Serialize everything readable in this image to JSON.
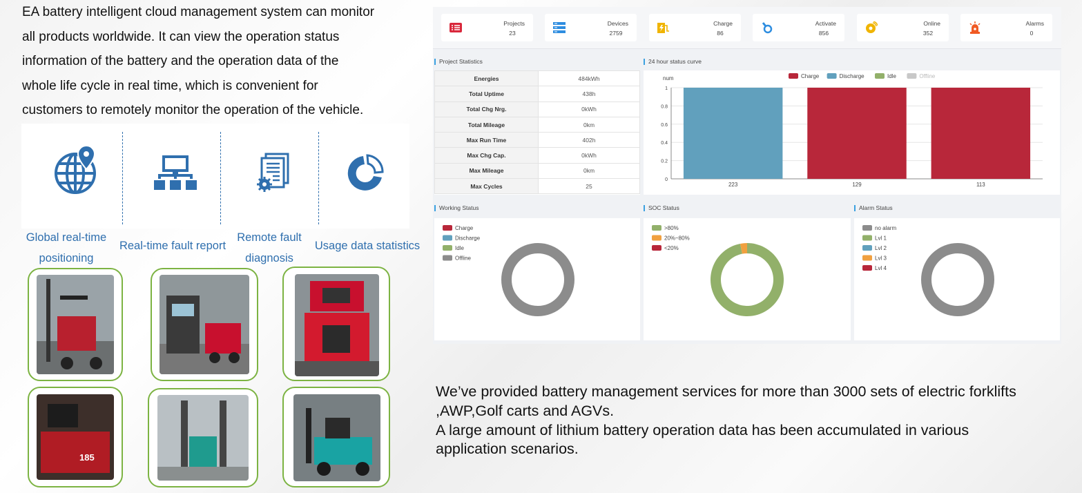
{
  "intro": {
    "lines": [
      "EA battery intelligent cloud management system can monitor",
      "all products worldwide. It can view the operation status",
      "information of the battery and the operation data of the",
      "whole life cycle in real time, which is convenient for",
      "customers to remotely monitor the operation of the vehicle."
    ]
  },
  "features": [
    {
      "line1": "Global real-time",
      "line2": "positioning",
      "icon": "globe-pin-icon"
    },
    {
      "line1": "Real-time fault report",
      "line2": "",
      "icon": "network-icon"
    },
    {
      "line1": "Remote fault",
      "line2": "diagnosis",
      "icon": "document-gear-icon"
    },
    {
      "line1": "Usage data statistics",
      "line2": "",
      "icon": "pie-chart-icon"
    }
  ],
  "photos": [
    {
      "icon": "forklift-photo",
      "accent": "#c8102e"
    },
    {
      "icon": "pallet-truck-photo",
      "accent": "#c8102e"
    },
    {
      "icon": "forklift-photo",
      "accent": "#c8102e"
    },
    {
      "icon": "forklift-photo",
      "accent": "#c8102e"
    },
    {
      "icon": "reach-truck-photo",
      "accent": "#2aa198"
    },
    {
      "icon": "forklift-photo",
      "accent": "#16a3a0"
    }
  ],
  "dashboard": {
    "stats": [
      {
        "label": "Projects",
        "value": "23",
        "icon": "list-icon",
        "color": "#d9283c"
      },
      {
        "label": "Devices",
        "value": "2759",
        "icon": "server-icon",
        "color": "#2e8de0"
      },
      {
        "label": "Charge",
        "value": "86",
        "icon": "charge-icon",
        "color": "#f0b400"
      },
      {
        "label": "Activate",
        "value": "856",
        "icon": "activate-icon",
        "color": "#2e8de0"
      },
      {
        "label": "Online",
        "value": "352",
        "icon": "online-icon",
        "color": "#f0b400"
      },
      {
        "label": "Alarms",
        "value": "0",
        "icon": "alarm-icon",
        "color": "#f05a23"
      }
    ],
    "project_statistics": {
      "title": "Project Statistics",
      "rows": [
        {
          "k": "Energies",
          "v": "484kWh"
        },
        {
          "k": "Total Uptime",
          "v": "438h"
        },
        {
          "k": "Total Chg Nrg.",
          "v": "0kWh"
        },
        {
          "k": "Total Mileage",
          "v": "0km"
        },
        {
          "k": "Max Run Time",
          "v": "402h"
        },
        {
          "k": "Max Chg Cap.",
          "v": "0kWh"
        },
        {
          "k": "Max Mileage",
          "v": "0km"
        },
        {
          "k": "Max Cycles",
          "v": "25"
        }
      ]
    },
    "status_curve": {
      "title": "24 hour status curve",
      "ylabel": "num",
      "legend": [
        {
          "name": "Charge",
          "color": "#b8273a"
        },
        {
          "name": "Discharge",
          "color": "#61a0bd"
        },
        {
          "name": "Idle",
          "color": "#92b06a"
        },
        {
          "name": "Offline",
          "color": "#c8c8c8"
        }
      ],
      "yticks": [
        "1",
        "0.8",
        "0.6",
        "0.4",
        "0.2",
        "0"
      ],
      "categories": [
        "223",
        "129",
        "113"
      ],
      "bars": [
        {
          "value": 1,
          "color": "#61a0bd"
        },
        {
          "value": 1,
          "color": "#b8273a"
        },
        {
          "value": 1,
          "color": "#b8273a"
        }
      ]
    },
    "working_status": {
      "title": "Working Status",
      "legend": [
        {
          "name": "Charge",
          "color": "#b8273a"
        },
        {
          "name": "Discharge",
          "color": "#61a0bd"
        },
        {
          "name": "Idle",
          "color": "#92b06a"
        },
        {
          "name": "Offline",
          "color": "#8c8c8c"
        }
      ],
      "slices": [
        {
          "name": "Offline",
          "value": 1,
          "color": "#8c8c8c"
        }
      ]
    },
    "soc_status": {
      "title": "SOC Status",
      "legend": [
        {
          "name": ">80%",
          "color": "#92b06a"
        },
        {
          "name": "20%~80%",
          "color": "#f0a040"
        },
        {
          "name": "<20%",
          "color": "#b8273a"
        }
      ],
      "slices": [
        {
          "name": ">80%",
          "value": 0.97,
          "color": "#92b06a"
        },
        {
          "name": "20%~80%",
          "value": 0.03,
          "color": "#f0a040"
        }
      ]
    },
    "alarm_status": {
      "title": "Alarm Status",
      "legend": [
        {
          "name": "no alarm",
          "color": "#8c8c8c"
        },
        {
          "name": "Lvl 1",
          "color": "#92b06a"
        },
        {
          "name": "Lvl 2",
          "color": "#61a0bd"
        },
        {
          "name": "Lvl 3",
          "color": "#f0a040"
        },
        {
          "name": "Lvl 4",
          "color": "#b8273a"
        }
      ],
      "slices": [
        {
          "name": "no alarm",
          "value": 1,
          "color": "#8c8c8c"
        }
      ]
    }
  },
  "bottom": {
    "p1": "We’ve provided battery management services for more than 3000 sets of electric forklifts ,AWP,Golf carts and AGVs.",
    "p2": "A large amount of lithium battery operation data has been accumulated in various application scenarios."
  }
}
